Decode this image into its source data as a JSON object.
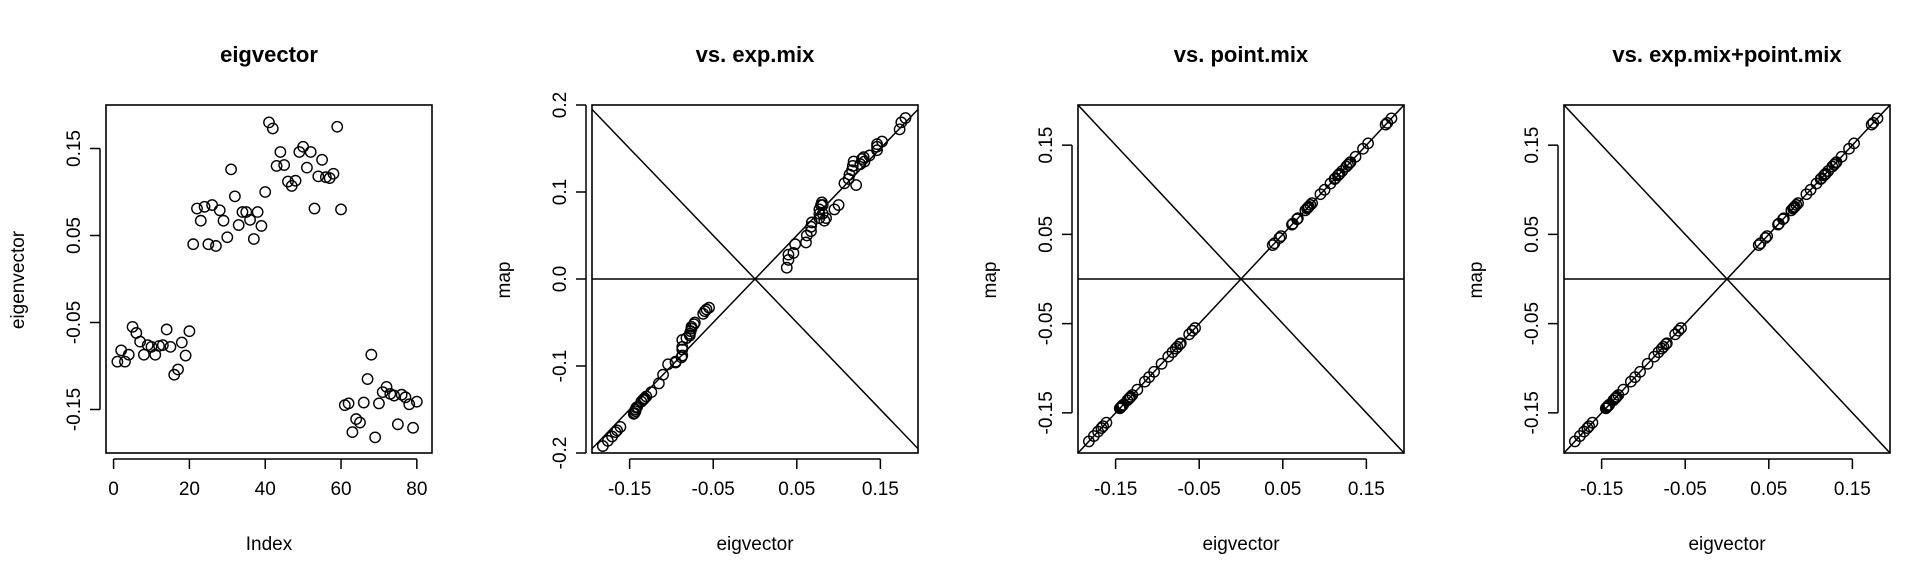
{
  "chart_data": [
    {
      "type": "scatter",
      "title": "eigvector",
      "xlabel": "Index",
      "ylabel": "eigenvector",
      "xlim": [
        -2,
        84
      ],
      "ylim": [
        -0.2,
        0.2
      ],
      "x_ticks": [
        0,
        20,
        40,
        60,
        80
      ],
      "x_tick_labels": [
        "0",
        "20",
        "40",
        "60",
        "80"
      ],
      "y_ticks": [
        -0.15,
        -0.05,
        0.05,
        0.15
      ],
      "y_tick_labels": [
        "-0.15",
        "-0.05",
        "0.05",
        "0.15"
      ],
      "reference_lines": [],
      "series": [
        {
          "x": [
            1,
            2,
            3,
            4,
            5,
            6,
            7,
            8,
            9,
            10,
            11,
            12,
            13,
            14,
            15,
            16,
            17,
            18,
            19,
            20,
            21,
            22,
            23,
            24,
            25,
            26,
            27,
            28,
            29,
            30,
            31,
            32,
            33,
            34,
            35,
            36,
            37,
            38,
            39,
            40,
            41,
            42,
            43,
            44,
            45,
            46,
            47,
            48,
            49,
            50,
            51,
            52,
            53,
            54,
            55,
            56,
            57,
            58,
            59,
            60,
            61,
            62,
            63,
            64,
            65,
            66,
            67,
            68,
            69,
            70,
            71,
            72,
            73,
            74,
            75,
            76,
            77,
            78,
            79,
            80
          ],
          "y": [
            -0.095,
            -0.082,
            -0.095,
            -0.087,
            -0.055,
            -0.062,
            -0.072,
            -0.087,
            -0.076,
            -0.078,
            -0.087,
            -0.077,
            -0.076,
            -0.058,
            -0.078,
            -0.11,
            -0.104,
            -0.073,
            -0.088,
            -0.06,
            0.04,
            0.081,
            0.067,
            0.083,
            0.04,
            0.085,
            0.038,
            0.079,
            0.067,
            0.048,
            0.126,
            0.095,
            0.062,
            0.077,
            0.077,
            0.068,
            0.046,
            0.077,
            0.061,
            0.1,
            0.18,
            0.173,
            0.13,
            0.146,
            0.131,
            0.112,
            0.107,
            0.113,
            0.146,
            0.152,
            0.128,
            0.146,
            0.081,
            0.118,
            0.137,
            0.117,
            0.116,
            0.121,
            0.175,
            0.08,
            -0.145,
            -0.143,
            -0.176,
            -0.161,
            -0.165,
            -0.142,
            -0.115,
            -0.087,
            -0.182,
            -0.143,
            -0.13,
            -0.124,
            -0.132,
            -0.134,
            -0.167,
            -0.133,
            -0.136,
            -0.144,
            -0.171,
            -0.141
          ]
        }
      ]
    },
    {
      "type": "scatter",
      "title": "vs. exp.mix",
      "xlabel": "eigvector",
      "ylabel": "map",
      "xlim": [
        -0.195,
        0.195
      ],
      "ylim": [
        -0.2,
        0.2
      ],
      "x_ticks": [
        -0.15,
        -0.05,
        0.05,
        0.15
      ],
      "x_tick_labels": [
        "-0.15",
        "-0.05",
        "0.05",
        "0.15"
      ],
      "y_ticks": [
        -0.2,
        -0.1,
        0.0,
        0.1,
        0.2
      ],
      "y_tick_labels": [
        "-0.2",
        "-0.1",
        "0.0",
        "0.1",
        "0.2"
      ],
      "reference_lines": [
        "y = x",
        "y = -x",
        "y = 0"
      ],
      "series": [
        {
          "x": [
            -0.182,
            -0.176,
            -0.171,
            -0.167,
            -0.165,
            -0.161,
            -0.145,
            -0.144,
            -0.143,
            -0.143,
            -0.142,
            -0.141,
            -0.136,
            -0.134,
            -0.133,
            -0.132,
            -0.13,
            -0.124,
            -0.115,
            -0.11,
            -0.104,
            -0.095,
            -0.095,
            -0.088,
            -0.087,
            -0.087,
            -0.087,
            -0.087,
            -0.082,
            -0.078,
            -0.078,
            -0.077,
            -0.076,
            -0.076,
            -0.073,
            -0.072,
            -0.062,
            -0.06,
            -0.058,
            -0.055,
            0.038,
            0.04,
            0.04,
            0.046,
            0.048,
            0.061,
            0.062,
            0.067,
            0.067,
            0.068,
            0.077,
            0.077,
            0.077,
            0.079,
            0.08,
            0.081,
            0.081,
            0.083,
            0.085,
            0.095,
            0.1,
            0.107,
            0.112,
            0.113,
            0.116,
            0.117,
            0.118,
            0.121,
            0.126,
            0.128,
            0.13,
            0.131,
            0.137,
            0.146,
            0.146,
            0.146,
            0.152,
            0.173,
            0.175,
            0.18
          ],
          "y": [
            -0.192,
            -0.186,
            -0.181,
            -0.176,
            -0.174,
            -0.17,
            -0.155,
            -0.154,
            -0.152,
            -0.15,
            -0.148,
            -0.147,
            -0.141,
            -0.139,
            -0.138,
            -0.137,
            -0.135,
            -0.13,
            -0.12,
            -0.11,
            -0.098,
            -0.096,
            -0.095,
            -0.09,
            -0.088,
            -0.081,
            -0.078,
            -0.07,
            -0.068,
            -0.065,
            -0.063,
            -0.06,
            -0.057,
            -0.055,
            -0.052,
            -0.05,
            -0.04,
            -0.037,
            -0.035,
            -0.033,
            0.013,
            0.022,
            0.028,
            0.03,
            0.04,
            0.042,
            0.05,
            0.055,
            0.06,
            0.065,
            0.07,
            0.075,
            0.08,
            0.085,
            0.088,
            0.085,
            0.075,
            0.067,
            0.07,
            0.08,
            0.085,
            0.11,
            0.115,
            0.12,
            0.125,
            0.13,
            0.135,
            0.108,
            0.132,
            0.138,
            0.14,
            0.135,
            0.142,
            0.148,
            0.152,
            0.155,
            0.158,
            0.172,
            0.18,
            0.185
          ]
        }
      ]
    },
    {
      "type": "scatter",
      "title": "vs. point.mix",
      "xlabel": "eigvector",
      "ylabel": "map",
      "xlim": [
        -0.195,
        0.195
      ],
      "ylim": [
        -0.195,
        0.195
      ],
      "x_ticks": [
        -0.15,
        -0.05,
        0.05,
        0.15
      ],
      "x_tick_labels": [
        "-0.15",
        "-0.05",
        "0.05",
        "0.15"
      ],
      "y_ticks": [
        -0.15,
        -0.05,
        0.05,
        0.15
      ],
      "y_tick_labels": [
        "-0.15",
        "-0.05",
        "0.05",
        "0.15"
      ],
      "reference_lines": [
        "y = x",
        "y = -x",
        "y = 0"
      ],
      "series": [
        {
          "x": [
            -0.182,
            -0.176,
            -0.171,
            -0.167,
            -0.165,
            -0.161,
            -0.145,
            -0.144,
            -0.143,
            -0.142,
            -0.141,
            -0.136,
            -0.134,
            -0.133,
            -0.132,
            -0.13,
            -0.124,
            -0.115,
            -0.11,
            -0.104,
            -0.095,
            -0.087,
            -0.082,
            -0.078,
            -0.076,
            -0.073,
            -0.072,
            -0.062,
            -0.058,
            -0.055,
            0.038,
            0.04,
            0.046,
            0.048,
            0.061,
            0.062,
            0.067,
            0.068,
            0.077,
            0.079,
            0.08,
            0.081,
            0.083,
            0.085,
            0.095,
            0.1,
            0.107,
            0.112,
            0.113,
            0.116,
            0.117,
            0.118,
            0.121,
            0.126,
            0.128,
            0.13,
            0.131,
            0.137,
            0.146,
            0.152,
            0.173,
            0.175,
            0.18
          ],
          "y": [
            -0.182,
            -0.176,
            -0.171,
            -0.167,
            -0.165,
            -0.161,
            -0.145,
            -0.144,
            -0.143,
            -0.142,
            -0.141,
            -0.136,
            -0.134,
            -0.133,
            -0.132,
            -0.13,
            -0.124,
            -0.115,
            -0.11,
            -0.104,
            -0.095,
            -0.087,
            -0.082,
            -0.078,
            -0.076,
            -0.073,
            -0.072,
            -0.062,
            -0.058,
            -0.055,
            0.038,
            0.04,
            0.046,
            0.048,
            0.061,
            0.062,
            0.067,
            0.068,
            0.077,
            0.079,
            0.08,
            0.081,
            0.083,
            0.085,
            0.095,
            0.1,
            0.107,
            0.112,
            0.113,
            0.116,
            0.117,
            0.118,
            0.121,
            0.126,
            0.128,
            0.13,
            0.131,
            0.137,
            0.146,
            0.152,
            0.173,
            0.175,
            0.18
          ]
        }
      ]
    },
    {
      "type": "scatter",
      "title": "vs. exp.mix+point.mix",
      "xlabel": "eigvector",
      "ylabel": "map",
      "xlim": [
        -0.195,
        0.195
      ],
      "ylim": [
        -0.195,
        0.195
      ],
      "x_ticks": [
        -0.15,
        -0.05,
        0.05,
        0.15
      ],
      "x_tick_labels": [
        "-0.15",
        "-0.05",
        "0.05",
        "0.15"
      ],
      "y_ticks": [
        -0.15,
        -0.05,
        0.05,
        0.15
      ],
      "y_tick_labels": [
        "-0.15",
        "-0.05",
        "0.05",
        "0.15"
      ],
      "reference_lines": [
        "y = x",
        "y = -x",
        "y = 0"
      ],
      "series": [
        {
          "x": [
            -0.182,
            -0.176,
            -0.171,
            -0.167,
            -0.165,
            -0.161,
            -0.145,
            -0.144,
            -0.143,
            -0.142,
            -0.141,
            -0.136,
            -0.134,
            -0.133,
            -0.132,
            -0.13,
            -0.124,
            -0.115,
            -0.11,
            -0.104,
            -0.095,
            -0.087,
            -0.082,
            -0.078,
            -0.076,
            -0.073,
            -0.072,
            -0.062,
            -0.058,
            -0.055,
            0.038,
            0.04,
            0.046,
            0.048,
            0.061,
            0.062,
            0.067,
            0.068,
            0.077,
            0.079,
            0.08,
            0.081,
            0.083,
            0.085,
            0.095,
            0.1,
            0.107,
            0.112,
            0.113,
            0.116,
            0.117,
            0.118,
            0.121,
            0.126,
            0.128,
            0.13,
            0.131,
            0.137,
            0.146,
            0.152,
            0.173,
            0.175,
            0.18
          ],
          "y": [
            -0.182,
            -0.176,
            -0.171,
            -0.167,
            -0.165,
            -0.161,
            -0.145,
            -0.144,
            -0.143,
            -0.142,
            -0.141,
            -0.136,
            -0.134,
            -0.133,
            -0.132,
            -0.13,
            -0.124,
            -0.115,
            -0.11,
            -0.104,
            -0.095,
            -0.087,
            -0.082,
            -0.078,
            -0.076,
            -0.073,
            -0.072,
            -0.062,
            -0.058,
            -0.055,
            0.038,
            0.04,
            0.046,
            0.048,
            0.061,
            0.062,
            0.067,
            0.068,
            0.077,
            0.079,
            0.08,
            0.081,
            0.083,
            0.085,
            0.095,
            0.1,
            0.107,
            0.112,
            0.113,
            0.116,
            0.117,
            0.118,
            0.121,
            0.126,
            0.128,
            0.13,
            0.131,
            0.137,
            0.146,
            0.152,
            0.173,
            0.175,
            0.18
          ]
        }
      ]
    }
  ]
}
